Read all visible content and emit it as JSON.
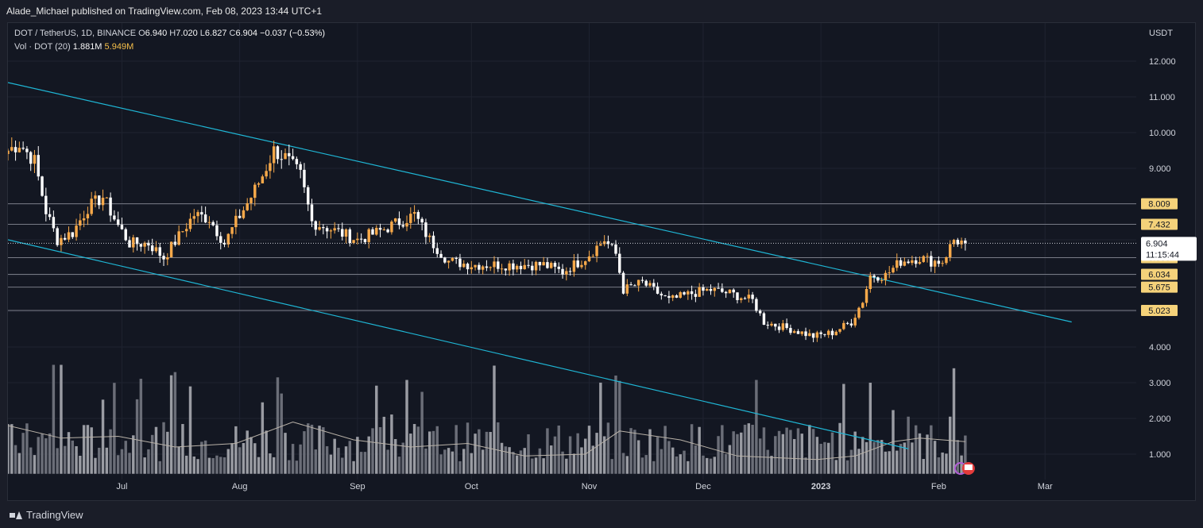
{
  "header": {
    "publisher_line": "Alade_Michael published on TradingView.com, Feb 08, 2023 13:44 UTC+1"
  },
  "legend": {
    "symbol": "DOT / TetherUS, 1D, BINANCE",
    "o_label": "O",
    "o": "6.940",
    "h_label": "H",
    "h": "7.020",
    "l_label": "L",
    "l": "6.827",
    "c_label": "C",
    "c": "6.904",
    "change": "−0.037 (−0.53%)",
    "vol_label": "Vol · DOT (20)",
    "vol_value": "1.881M",
    "vol_ma": "5.949M"
  },
  "footer": {
    "brand": "TradingView"
  },
  "colors": {
    "background": "#131722",
    "up": "#f7a94a",
    "down": "#ffffff",
    "trendline": "#1fb7d6",
    "horizontal": "#787b86",
    "vol_bar": "#8a8d96",
    "vol_ma": "#b9b2a8"
  },
  "chart_data": {
    "type": "candlestick",
    "symbol": "DOT / TetherUS",
    "interval": "1D",
    "exchange": "BINANCE",
    "currency": "USDT",
    "price_axis_ticks": [
      "12.000",
      "11.000",
      "10.000",
      "9.000",
      "8.000",
      "7.000",
      "6.000",
      "5.000",
      "4.000",
      "3.000",
      "2.000",
      "1.000"
    ],
    "price_axis_values": [
      12,
      11,
      10,
      9,
      8,
      7,
      6,
      5,
      4,
      3,
      2,
      1
    ],
    "time_axis_labels": [
      "Jul",
      "Aug",
      "Sep",
      "Oct",
      "Nov",
      "Dec",
      "2023",
      "Feb",
      "Mar"
    ],
    "time_axis_dates": [
      "2022-07-01",
      "2022-08-01",
      "2022-09-01",
      "2022-10-01",
      "2022-11-01",
      "2022-12-01",
      "2023-01-01",
      "2023-02-01",
      "2023-03-01"
    ],
    "x_range": [
      "2022-06-01",
      "2023-03-25"
    ],
    "y_range": [
      0.3,
      13.0
    ],
    "levels": [
      {
        "value": 8.009,
        "label": "8.009"
      },
      {
        "value": 7.432,
        "label": "7.432"
      },
      {
        "value": 6.5,
        "label": "6.500"
      },
      {
        "value": 6.034,
        "label": "6.034"
      },
      {
        "value": 5.675,
        "label": "5.675"
      },
      {
        "value": 5.023,
        "label": "5.023"
      }
    ],
    "last_price": {
      "value": 6.904,
      "label": "6.904",
      "countdown": "11:15:44"
    },
    "trendlines": [
      {
        "name": "upper",
        "from": {
          "date": "2022-06-01",
          "price": 11.4
        },
        "to": {
          "date": "2023-03-08",
          "price": 4.7
        }
      },
      {
        "name": "lower",
        "from": {
          "date": "2022-06-01",
          "price": 7.0
        },
        "to": {
          "date": "2023-01-24",
          "price": 1.15
        }
      }
    ],
    "price_path": [
      [
        "2022-06-01",
        9.5
      ],
      [
        "2022-06-04",
        9.7
      ],
      [
        "2022-06-08",
        9.2
      ],
      [
        "2022-06-11",
        7.8
      ],
      [
        "2022-06-14",
        7.0
      ],
      [
        "2022-06-18",
        7.2
      ],
      [
        "2022-06-22",
        7.9
      ],
      [
        "2022-06-26",
        8.2
      ],
      [
        "2022-06-30",
        7.4
      ],
      [
        "2022-07-03",
        6.9
      ],
      [
        "2022-07-08",
        6.9
      ],
      [
        "2022-07-12",
        6.5
      ],
      [
        "2022-07-16",
        7.1
      ],
      [
        "2022-07-20",
        7.7
      ],
      [
        "2022-07-24",
        7.6
      ],
      [
        "2022-07-28",
        6.9
      ],
      [
        "2022-07-31",
        7.5
      ],
      [
        "2022-08-04",
        8.2
      ],
      [
        "2022-08-07",
        8.8
      ],
      [
        "2022-08-10",
        9.5
      ],
      [
        "2022-08-13",
        9.3
      ],
      [
        "2022-08-17",
        8.8
      ],
      [
        "2022-08-20",
        7.5
      ],
      [
        "2022-08-25",
        7.3
      ],
      [
        "2022-09-01",
        7.0
      ],
      [
        "2022-09-06",
        7.2
      ],
      [
        "2022-09-12",
        7.5
      ],
      [
        "2022-09-16",
        7.7
      ],
      [
        "2022-09-20",
        7.0
      ],
      [
        "2022-09-25",
        6.4
      ],
      [
        "2022-10-01",
        6.3
      ],
      [
        "2022-10-10",
        6.3
      ],
      [
        "2022-10-20",
        6.3
      ],
      [
        "2022-10-25",
        6.1
      ],
      [
        "2022-10-31",
        6.5
      ],
      [
        "2022-11-05",
        7.0
      ],
      [
        "2022-11-08",
        6.6
      ],
      [
        "2022-11-10",
        5.6
      ],
      [
        "2022-11-15",
        5.8
      ],
      [
        "2022-11-22",
        5.3
      ],
      [
        "2022-11-28",
        5.5
      ],
      [
        "2022-12-03",
        5.6
      ],
      [
        "2022-12-08",
        5.5
      ],
      [
        "2022-12-14",
        5.3
      ],
      [
        "2022-12-17",
        4.7
      ],
      [
        "2022-12-24",
        4.5
      ],
      [
        "2022-12-30",
        4.3
      ],
      [
        "2023-01-04",
        4.4
      ],
      [
        "2023-01-09",
        4.7
      ],
      [
        "2023-01-12",
        5.3
      ],
      [
        "2023-01-14",
        6.0
      ],
      [
        "2023-01-18",
        6.0
      ],
      [
        "2023-01-22",
        6.4
      ],
      [
        "2023-01-27",
        6.5
      ],
      [
        "2023-01-30",
        6.4
      ],
      [
        "2023-02-02",
        6.4
      ],
      [
        "2023-02-05",
        7.0
      ],
      [
        "2023-02-08",
        6.9
      ]
    ],
    "volume_ma": [
      [
        "2022-06-01",
        1.8
      ],
      [
        "2022-06-15",
        1.45
      ],
      [
        "2022-06-30",
        1.5
      ],
      [
        "2022-07-15",
        1.2
      ],
      [
        "2022-07-31",
        1.3
      ],
      [
        "2022-08-15",
        1.9
      ],
      [
        "2022-08-31",
        1.4
      ],
      [
        "2022-09-15",
        1.2
      ],
      [
        "2022-09-30",
        1.3
      ],
      [
        "2022-10-15",
        0.95
      ],
      [
        "2022-10-31",
        1.0
      ],
      [
        "2022-11-09",
        1.65
      ],
      [
        "2022-11-25",
        1.4
      ],
      [
        "2022-12-10",
        0.95
      ],
      [
        "2022-12-31",
        0.85
      ],
      [
        "2023-01-10",
        0.95
      ],
      [
        "2023-01-20",
        1.35
      ],
      [
        "2023-01-27",
        1.45
      ],
      [
        "2023-02-08",
        1.35
      ]
    ]
  }
}
